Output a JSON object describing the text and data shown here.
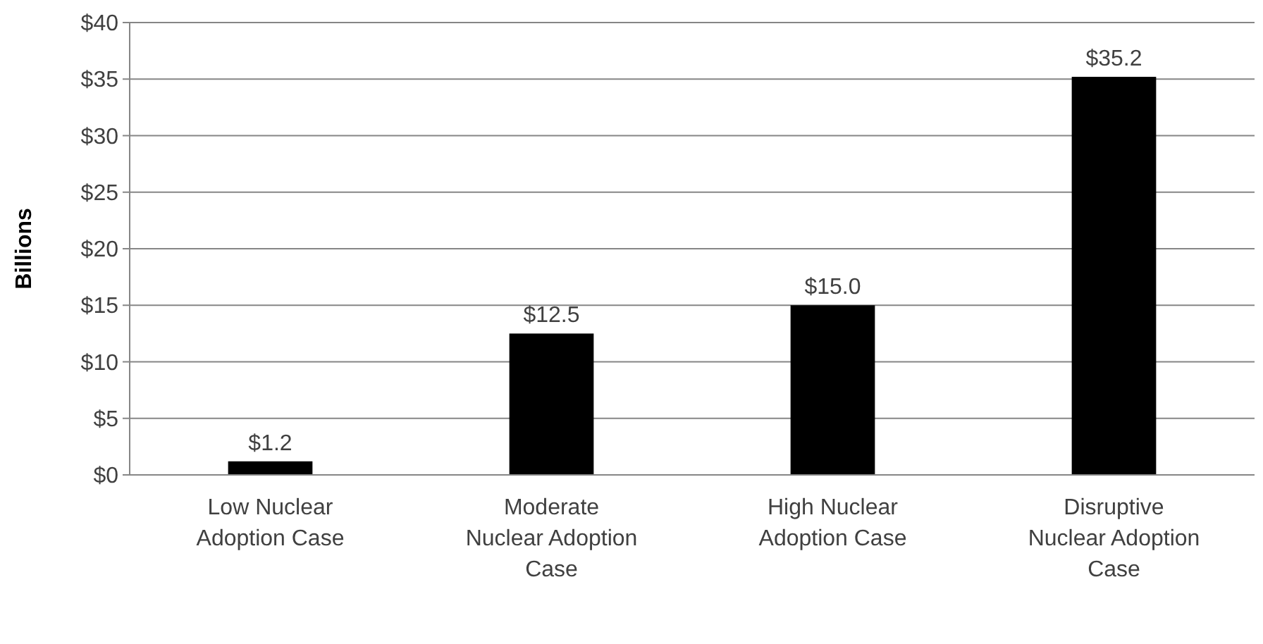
{
  "chart_data": {
    "type": "bar",
    "ylabel": "Billions",
    "categories": [
      "Low Nuclear Adoption Case",
      "Moderate Nuclear Adoption Case",
      "High Nuclear Adoption Case",
      "Disruptive Nuclear Adoption Case"
    ],
    "values": [
      1.2,
      12.5,
      15.0,
      35.2
    ],
    "value_labels": [
      "$1.2",
      "$12.5",
      "$15.0",
      "$35.2"
    ],
    "color": "#000000",
    "ylim": [
      0,
      40
    ],
    "yticks": [
      {
        "value": 0,
        "label": "$0"
      },
      {
        "value": 5,
        "label": "$5"
      },
      {
        "value": 10,
        "label": "$10"
      },
      {
        "value": 15,
        "label": "$15"
      },
      {
        "value": 20,
        "label": "$20"
      },
      {
        "value": 25,
        "label": "$25"
      },
      {
        "value": 30,
        "label": "$30"
      },
      {
        "value": 35,
        "label": "$35"
      },
      {
        "value": 40,
        "label": "$40"
      }
    ],
    "grid": "y"
  }
}
